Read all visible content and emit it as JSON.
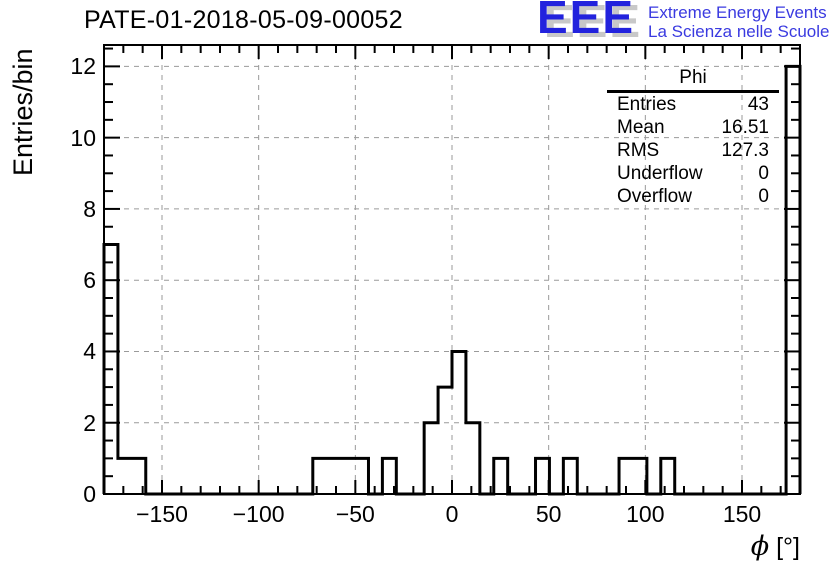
{
  "page": {
    "background": "#ffffff"
  },
  "header": {
    "logo": {
      "eee": "EEE",
      "line1": "Extreme Energy Events",
      "line2": "La Scienza nelle Scuole",
      "blue": "#2222dd",
      "text_blue": "#3a3ae0",
      "shadow": "#c8c8c8"
    }
  },
  "chart_data": {
    "type": "bar",
    "subtype": "step-histogram",
    "title": "PATE-01-2018-05-09-00052",
    "xlabel": "ϕ [°]",
    "xlabel_phi": "ϕ",
    "xlabel_unit": " [°]",
    "ylabel": "Entries/bin",
    "xlim": [
      -180,
      180
    ],
    "ylim": [
      0,
      12.6
    ],
    "grid": true,
    "x_major_ticks": [
      -150,
      -100,
      -50,
      0,
      50,
      100,
      150
    ],
    "x_tick_labels": [
      "−150",
      "−100",
      "−50",
      "0",
      "50",
      "100",
      "150"
    ],
    "x_minor_step": 10,
    "y_major_ticks": [
      0,
      2,
      4,
      6,
      8,
      10,
      12
    ],
    "y_tick_labels": [
      "0",
      "2",
      "4",
      "6",
      "8",
      "10",
      "12"
    ],
    "y_minor_step": 0.5,
    "line_color": "#000000",
    "grid_color": "#9a9a9a",
    "bins": {
      "start": -180,
      "width": 7.2,
      "counts": [
        7,
        1,
        1,
        0,
        0,
        0,
        0,
        0,
        0,
        0,
        0,
        0,
        0,
        0,
        0,
        1,
        1,
        1,
        1,
        0,
        1,
        0,
        0,
        2,
        3,
        4,
        2,
        0,
        1,
        0,
        0,
        1,
        0,
        1,
        0,
        0,
        0,
        1,
        1,
        0,
        1,
        0,
        0,
        0,
        0,
        0,
        0,
        0,
        0,
        12
      ]
    },
    "stats": {
      "title": "Phi",
      "rows": [
        {
          "label": "Entries",
          "value": "43"
        },
        {
          "label": "Mean",
          "value": "16.51"
        },
        {
          "label": "RMS",
          "value": "127.3"
        },
        {
          "label": "Underflow",
          "value": "0"
        },
        {
          "label": "Overflow",
          "value": "0"
        }
      ]
    }
  }
}
